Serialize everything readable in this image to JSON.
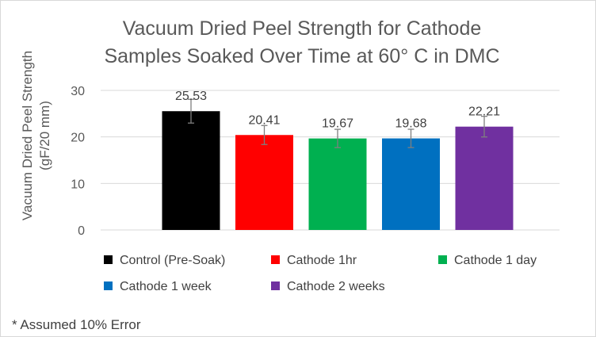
{
  "chart_data": {
    "type": "bar",
    "title_lines": [
      "Vacuum Dried Peel Strength for Cathode",
      "Samples Soaked Over Time at 60° C in DMC"
    ],
    "ylabel_lines": [
      "Vacuum Dried Peel Strength",
      "(gF/20 mm)"
    ],
    "xlabel": "",
    "ylim": [
      0,
      30
    ],
    "yticks": [
      0,
      10,
      20,
      30
    ],
    "grid": true,
    "legend_position": "bottom",
    "categories": [
      "Control (Pre-Soak)",
      "Cathode 1hr",
      "Cathode 1 day",
      "Cathode 1 week",
      "Cathode 2 weeks"
    ],
    "values": [
      25.53,
      20.41,
      19.67,
      19.68,
      22.21
    ],
    "labels": [
      "25.53",
      "20.41",
      "19.67",
      "19.68",
      "22.21"
    ],
    "error_fraction": 0.1,
    "colors": [
      "#000000",
      "#ff0000",
      "#00b050",
      "#0070c0",
      "#7030a0"
    ],
    "footnote": "* Assumed 10% Error"
  },
  "colors": {
    "gridline": "#d9d9d9",
    "error_bar": "#7f7f7f"
  }
}
